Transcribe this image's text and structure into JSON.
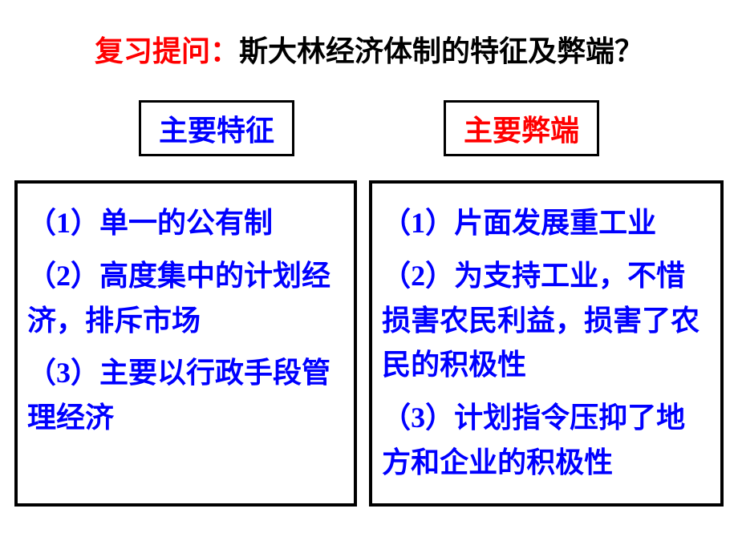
{
  "title": {
    "prefix": "复习提问：",
    "main": "斯大林经济体制的特征及弊端？"
  },
  "subtitles": {
    "left": "主要特征",
    "right": "主要弊端"
  },
  "leftContent": {
    "item1": "（1）单一的公有制",
    "item2": "（2）高度集中的计划经济，排斥市场",
    "item3": "（3）主要以行政手段管理经济"
  },
  "rightContent": {
    "item1": "（1）片面发展重工业",
    "item2": "（2）为支持工业，不惜损害农民利益，损害了农民的积极性",
    "item3": "（3）计划指令压抑了地方和企业的积极性"
  },
  "colors": {
    "red": "#ff0000",
    "blue": "#0000ff",
    "black": "#000000",
    "background": "#ffffff"
  }
}
